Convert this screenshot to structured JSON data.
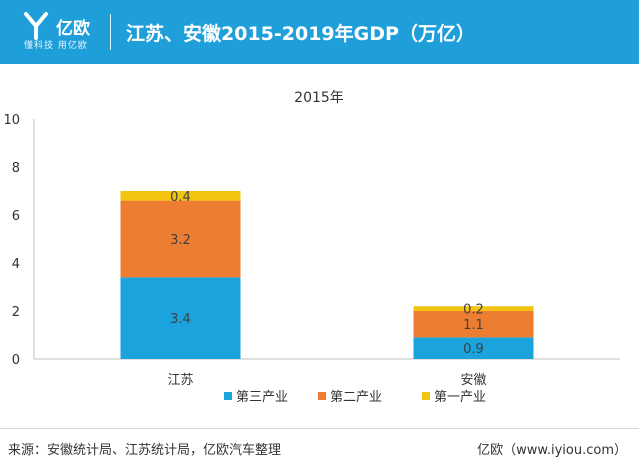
{
  "header": {
    "logo_text": "亿欧",
    "logo_sub": "懂科技 用亿欧",
    "title": "江苏、安徽2015-2019年GDP（万亿）"
  },
  "chart_data": {
    "type": "bar",
    "stacked": true,
    "title": "2015年",
    "categories": [
      "江苏",
      "安徽"
    ],
    "series": [
      {
        "name": "第三产业",
        "values": [
          3.4,
          0.9
        ],
        "labels": [
          "3.4",
          "0.9"
        ],
        "color": "#1aa3dc"
      },
      {
        "name": "第二产业",
        "values": [
          3.2,
          1.1
        ],
        "labels": [
          "3.2",
          "1.1"
        ],
        "color": "#ed7d31"
      },
      {
        "name": "第一产业",
        "values": [
          0.4,
          0.2
        ],
        "labels": [
          "0.4",
          "0.2"
        ],
        "color": "#f2c40f"
      }
    ],
    "yticks": [
      "0",
      "2",
      "4",
      "6",
      "8",
      "10"
    ],
    "ylim": [
      0,
      10
    ],
    "legend": "bottom",
    "grid": false
  },
  "footer": {
    "source": "来源：安徽统计局、江苏统计局，亿欧汽车整理",
    "brand": "亿欧（www.iyiou.com）"
  }
}
